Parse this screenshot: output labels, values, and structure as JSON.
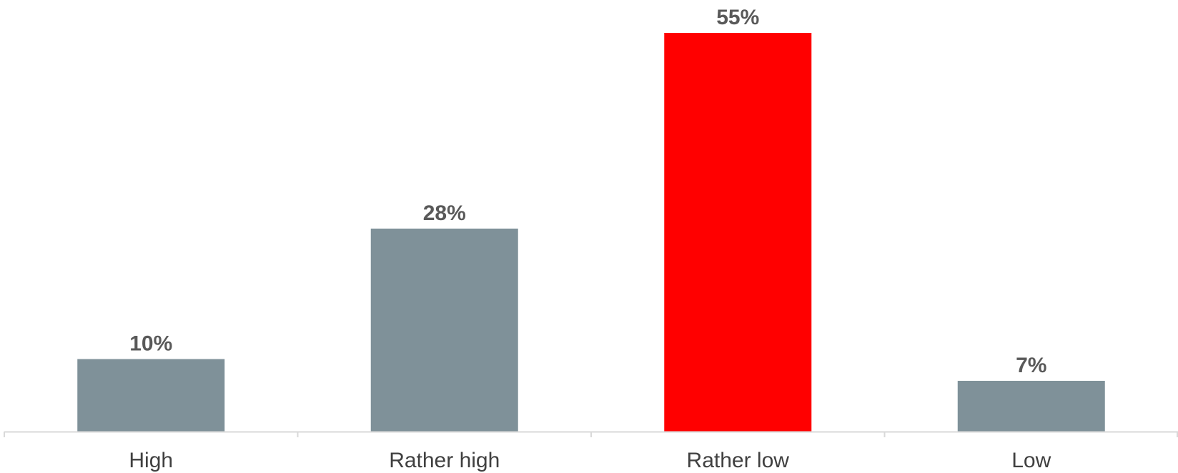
{
  "chart_data": {
    "type": "bar",
    "title": "",
    "xlabel": "",
    "ylabel": "",
    "categories": [
      "High",
      "Rather high",
      "Rather low",
      "Low"
    ],
    "values": [
      10,
      28,
      55,
      7
    ],
    "value_labels": [
      "10%",
      "28%",
      "55%",
      "7%"
    ],
    "unit": "%",
    "ylim": [
      0,
      55
    ],
    "grid": false,
    "legend": "none",
    "colors": {
      "default_bar": "#7f9199",
      "highlight_bar": "#ff0000",
      "axis": "#d9d9d9",
      "value_label": "#595959",
      "category_label": "#404040"
    },
    "highlight_index": 2
  }
}
